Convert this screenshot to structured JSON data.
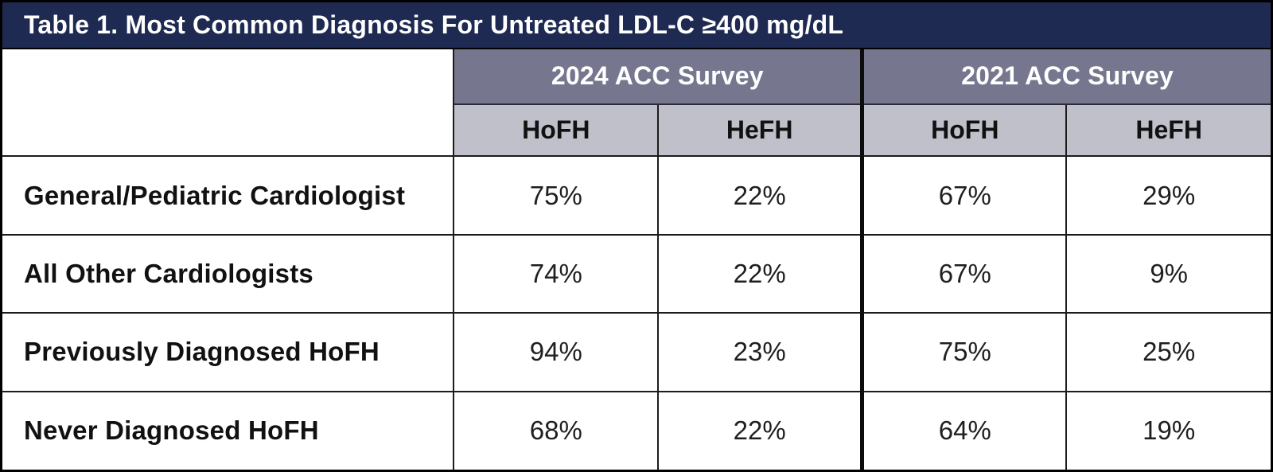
{
  "table": {
    "title": "Table 1. Most Common Diagnosis For Untreated LDL-C ≥400 mg/dL",
    "group_headers": [
      {
        "label": "2024 ACC Survey"
      },
      {
        "label": "2021 ACC Survey"
      }
    ],
    "sub_headers": [
      "HoFH",
      "HeFH",
      "HoFH",
      "HeFH"
    ],
    "rows": [
      {
        "label": "General/Pediatric Cardiologist",
        "values": [
          "75%",
          "22%",
          "67%",
          "29%"
        ]
      },
      {
        "label": "All Other Cardiologists",
        "values": [
          "74%",
          "22%",
          "67%",
          "9%"
        ]
      },
      {
        "label": "Previously Diagnosed HoFH",
        "values": [
          "94%",
          "23%",
          "75%",
          "25%"
        ]
      },
      {
        "label": "Never Diagnosed HoFH",
        "values": [
          "68%",
          "22%",
          "64%",
          "19%"
        ]
      }
    ]
  },
  "chart_data": {
    "type": "table",
    "title": "Table 1. Most Common Diagnosis For Untreated LDL-C ≥400 mg/dL",
    "column_groups": [
      "2024 ACC Survey",
      "2021 ACC Survey"
    ],
    "columns": [
      "2024 ACC Survey HoFH",
      "2024 ACC Survey HeFH",
      "2021 ACC Survey HoFH",
      "2021 ACC Survey HeFH"
    ],
    "row_labels": [
      "General/Pediatric Cardiologist",
      "All Other Cardiologists",
      "Previously Diagnosed HoFH",
      "Never Diagnosed HoFH"
    ],
    "values_percent": [
      [
        75,
        22,
        67,
        29
      ],
      [
        74,
        22,
        67,
        9
      ],
      [
        94,
        23,
        75,
        25
      ],
      [
        68,
        22,
        64,
        19
      ]
    ]
  },
  "colors": {
    "title_bg": "#1e2a52",
    "title_text": "#ffffff",
    "group_header_bg": "#76778f",
    "group_header_text": "#ffffff",
    "sub_header_bg": "#bfc0ca",
    "body_bg": "#ffffff",
    "border": "#1c1c1c"
  }
}
